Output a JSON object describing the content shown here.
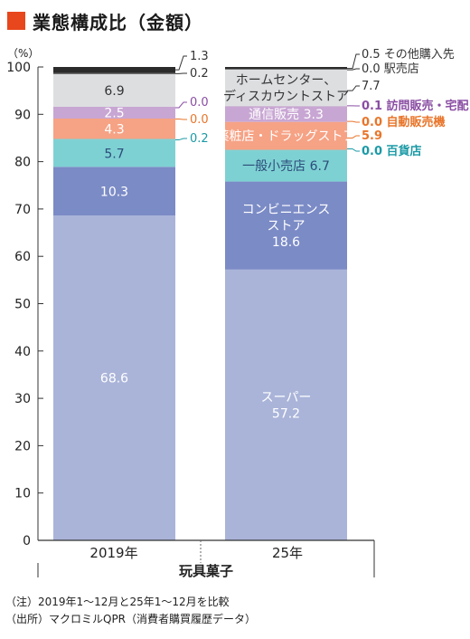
{
  "title": "業態構成比（金額）",
  "unit_label": "（%）",
  "colors": {
    "title_mark": "#e8461c",
    "super": "#aab4d9",
    "cvs": "#7b8bc6",
    "general": "#7ed1d3",
    "drug": "#f6a285",
    "vending": "#f6a285",
    "direct": "#c8a6d3",
    "homecenter": "#dcdee0",
    "station": "#555555",
    "other": "#2b2b2b",
    "dept": "#7ed1d3",
    "label_teal": "#1b9aa6",
    "label_orange": "#e8752a",
    "label_purple": "#8a4ea3",
    "label_gray": "#333333"
  },
  "chart_data": {
    "type": "bar",
    "stacked": true,
    "ylim": [
      0,
      100
    ],
    "y_ticks": [
      "0",
      "10",
      "20",
      "30",
      "40",
      "50",
      "60",
      "70",
      "80",
      "90",
      "100"
    ],
    "categories": [
      "2019年",
      "25年"
    ],
    "group_label": "玩具菓子",
    "series": [
      {
        "key": "super",
        "values": [
          68.6,
          57.2
        ],
        "labels": [
          "68.6",
          "スーパー\n57.2"
        ]
      },
      {
        "key": "cvs",
        "values": [
          10.3,
          18.6
        ],
        "labels": [
          "10.3",
          "コンビニエンス\nストア\n18.6"
        ]
      },
      {
        "key": "general",
        "values": [
          5.7,
          6.7
        ],
        "labels": [
          "5.7",
          "一般小売店 6.7"
        ]
      },
      {
        "key": "dept",
        "values": [
          0.2,
          0.0
        ],
        "labels": [
          "",
          ""
        ]
      },
      {
        "key": "drug",
        "values": [
          4.3,
          5.9
        ],
        "labels": [
          "4.3",
          "薬粧店・ドラッグストア"
        ]
      },
      {
        "key": "vending",
        "values": [
          0.0,
          0.0
        ],
        "labels": [
          "",
          ""
        ]
      },
      {
        "key": "direct",
        "values": [
          2.5,
          3.3
        ],
        "labels": [
          "2.5",
          "通信販売 3.3"
        ]
      },
      {
        "key": "visit",
        "values": [
          0.0,
          0.1
        ],
        "labels": [
          "",
          ""
        ]
      },
      {
        "key": "homecenter",
        "values": [
          6.9,
          7.7
        ],
        "labels": [
          "6.9",
          "ホームセンター、\nディスカウントストア"
        ]
      },
      {
        "key": "station",
        "values": [
          0.2,
          0.0
        ],
        "labels": [
          "",
          ""
        ]
      },
      {
        "key": "other",
        "values": [
          1.3,
          0.5
        ],
        "labels": [
          "",
          ""
        ]
      }
    ],
    "annotations_2019": [
      {
        "text": "1.3",
        "color": "label_gray"
      },
      {
        "text": "0.2",
        "color": "label_gray"
      },
      {
        "text": "0.0",
        "color": "label_purple"
      },
      {
        "text": "0.0",
        "color": "label_orange"
      },
      {
        "text": "0.2",
        "color": "label_teal"
      }
    ],
    "annotations_25": [
      {
        "text": "0.5 その他購入先",
        "color": "label_gray"
      },
      {
        "text": "0.0 駅売店",
        "color": "label_gray"
      },
      {
        "text": "7.7",
        "color": "label_gray"
      },
      {
        "text": "0.1 訪問販売・宅配",
        "color": "label_purple"
      },
      {
        "text": "0.0 自動販売機",
        "color": "label_orange"
      },
      {
        "text": "5.9",
        "color": "label_orange"
      },
      {
        "text": "0.0 百貨店",
        "color": "label_teal"
      }
    ]
  },
  "notes": [
    "（注）2019年1～12月と25年1～12月を比較",
    "（出所）マクロミルQPR（消費者購買履歴データ）"
  ]
}
